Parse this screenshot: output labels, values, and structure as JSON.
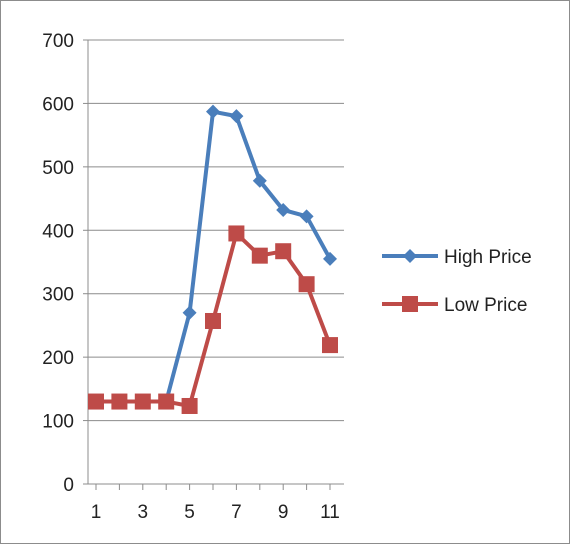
{
  "chart_data": {
    "type": "line",
    "x": [
      1,
      2,
      3,
      4,
      5,
      6,
      7,
      8,
      9,
      10,
      11
    ],
    "x_tick_labels": [
      "1",
      "3",
      "5",
      "7",
      "9",
      "11"
    ],
    "y_tick_labels": [
      "0",
      "100",
      "200",
      "300",
      "400",
      "500",
      "600",
      "700"
    ],
    "ylim": [
      0,
      700
    ],
    "xlim": [
      1,
      11
    ],
    "grid": "horizontal",
    "legend": "right",
    "series": [
      {
        "name": "High Price",
        "color": "#4a7ebb",
        "marker": "diamond",
        "values": [
          130,
          130,
          130,
          130,
          270,
          587,
          580,
          478,
          432,
          422,
          355
        ]
      },
      {
        "name": "Low Price",
        "color": "#be4b48",
        "marker": "square",
        "values": [
          130,
          130,
          130,
          130,
          123,
          257,
          395,
          360,
          367,
          315,
          219
        ]
      }
    ]
  }
}
